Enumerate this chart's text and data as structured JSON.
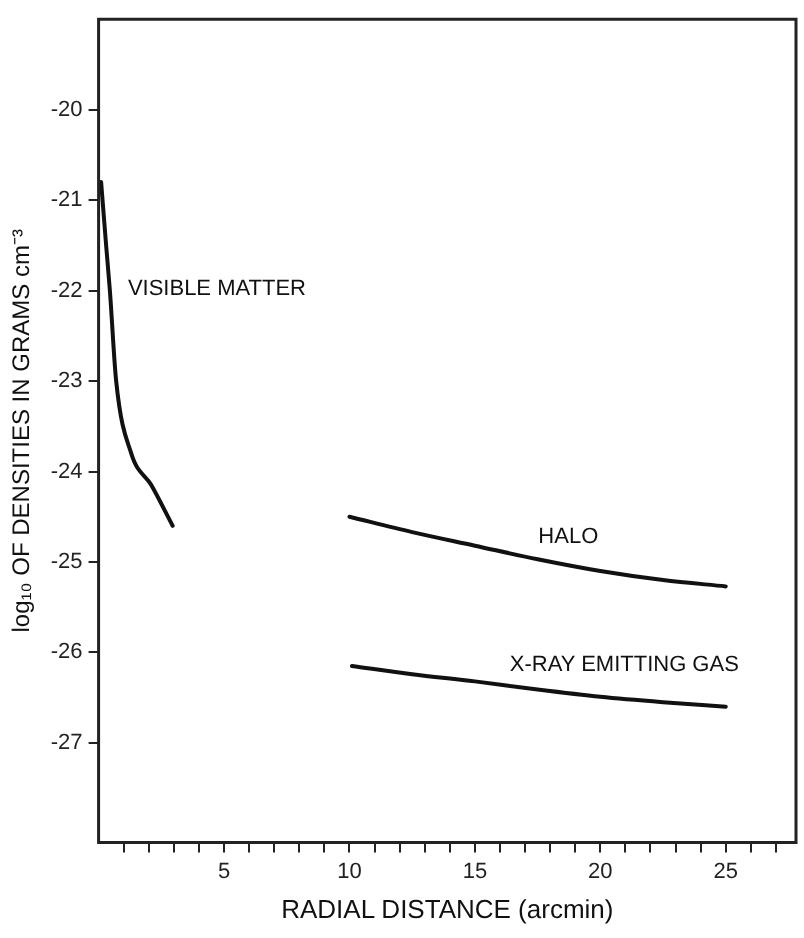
{
  "chart_data": {
    "type": "line",
    "xlabel": "RADIAL DISTANCE (arcmin)",
    "ylabel": "log₁₀ OF DENSITIES IN GRAMS cm⁻³",
    "xlim": [
      0,
      27.8
    ],
    "ylim": [
      -28.1,
      -19
    ],
    "xticks": [
      {
        "value": 1,
        "label": null
      },
      {
        "value": 2,
        "label": null
      },
      {
        "value": 3,
        "label": null
      },
      {
        "value": 4,
        "label": null
      },
      5,
      {
        "value": 6,
        "label": null
      },
      {
        "value": 7,
        "label": null
      },
      {
        "value": 8,
        "label": null
      },
      {
        "value": 9,
        "label": null
      },
      10,
      {
        "value": 11,
        "label": null
      },
      {
        "value": 12,
        "label": null
      },
      {
        "value": 13,
        "label": null
      },
      {
        "value": 14,
        "label": null
      },
      15,
      {
        "value": 16,
        "label": null
      },
      {
        "value": 17,
        "label": null
      },
      {
        "value": 18,
        "label": null
      },
      {
        "value": 19,
        "label": null
      },
      20,
      {
        "value": 21,
        "label": null
      },
      {
        "value": 22,
        "label": null
      },
      {
        "value": 23,
        "label": null
      },
      {
        "value": 24,
        "label": null
      },
      25,
      {
        "value": 26,
        "label": null
      },
      {
        "value": 27,
        "label": null
      }
    ],
    "yticks": [
      -20,
      -21,
      -22,
      -23,
      -24,
      -25,
      -26,
      -27
    ],
    "grid": false,
    "legend": false,
    "marker": "none",
    "line_style": "solid",
    "series": [
      {
        "name": "VISIBLE MATTER",
        "color": "#111111",
        "x": [
          0.1,
          0.3,
          0.45,
          0.7,
          1.3,
          2.1,
          2.95
        ],
        "values": [
          -20.8,
          -21.5,
          -22,
          -23,
          -23.8,
          -24.15,
          -24.6
        ]
      },
      {
        "name": "HALO",
        "color": "#111111",
        "x": [
          10,
          12.5,
          15,
          17.5,
          20,
          22.5,
          25
        ],
        "values": [
          -24.5,
          -24.67,
          -24.82,
          -24.97,
          -25.1,
          -25.2,
          -25.27
        ]
      },
      {
        "name": "X-RAY EMITTING GAS",
        "color": "#111111",
        "x": [
          10.1,
          12.5,
          15,
          17.5,
          20,
          22.5,
          25
        ],
        "values": [
          -26.15,
          -26.24,
          -26.32,
          -26.41,
          -26.49,
          -26.55,
          -26.6
        ]
      }
    ]
  }
}
